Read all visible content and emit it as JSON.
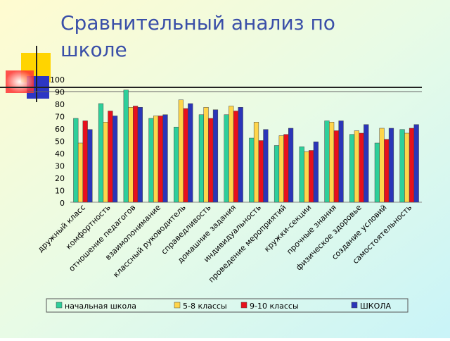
{
  "chart_data": {
    "type": "bar",
    "title": "Сравнительный анализ по школе",
    "categories": [
      "дружный класс",
      "комфортность",
      "отношение педагогов",
      "взаимопонимание",
      "классный руководитель",
      "справедливость",
      "домашние задания",
      "индивидуальность",
      "проведение мероприятий",
      "кружки-секции",
      "прочные знания",
      "физическое здоровье",
      "создание условий",
      "самостоятельность"
    ],
    "series": [
      {
        "name": "начальная школа",
        "color": "#2ecf9a",
        "values": [
          68,
          80,
          91,
          68,
          61,
          71,
          71,
          52,
          46,
          45,
          66,
          55,
          48,
          59
        ]
      },
      {
        "name": "5-8 классы",
        "color": "#ffd54a",
        "values": [
          48,
          65,
          77,
          70,
          83,
          77,
          78,
          65,
          54,
          41,
          65,
          58,
          60,
          56
        ]
      },
      {
        "name": "9-10 классы",
        "color": "#e8101c",
        "values": [
          66,
          74,
          78,
          70,
          76,
          68,
          74,
          50,
          55,
          42,
          58,
          56,
          51,
          60
        ]
      },
      {
        "name": "ШКОЛА",
        "color": "#2b35b8",
        "values": [
          59,
          70,
          77,
          71,
          80,
          75,
          77,
          59,
          60,
          49,
          66,
          63,
          60,
          63
        ]
      }
    ],
    "ylim": [
      0,
      100
    ],
    "yticks": [
      0,
      10,
      20,
      30,
      40,
      50,
      60,
      70,
      80,
      90,
      100
    ],
    "grid": false,
    "legend": "bottom"
  }
}
